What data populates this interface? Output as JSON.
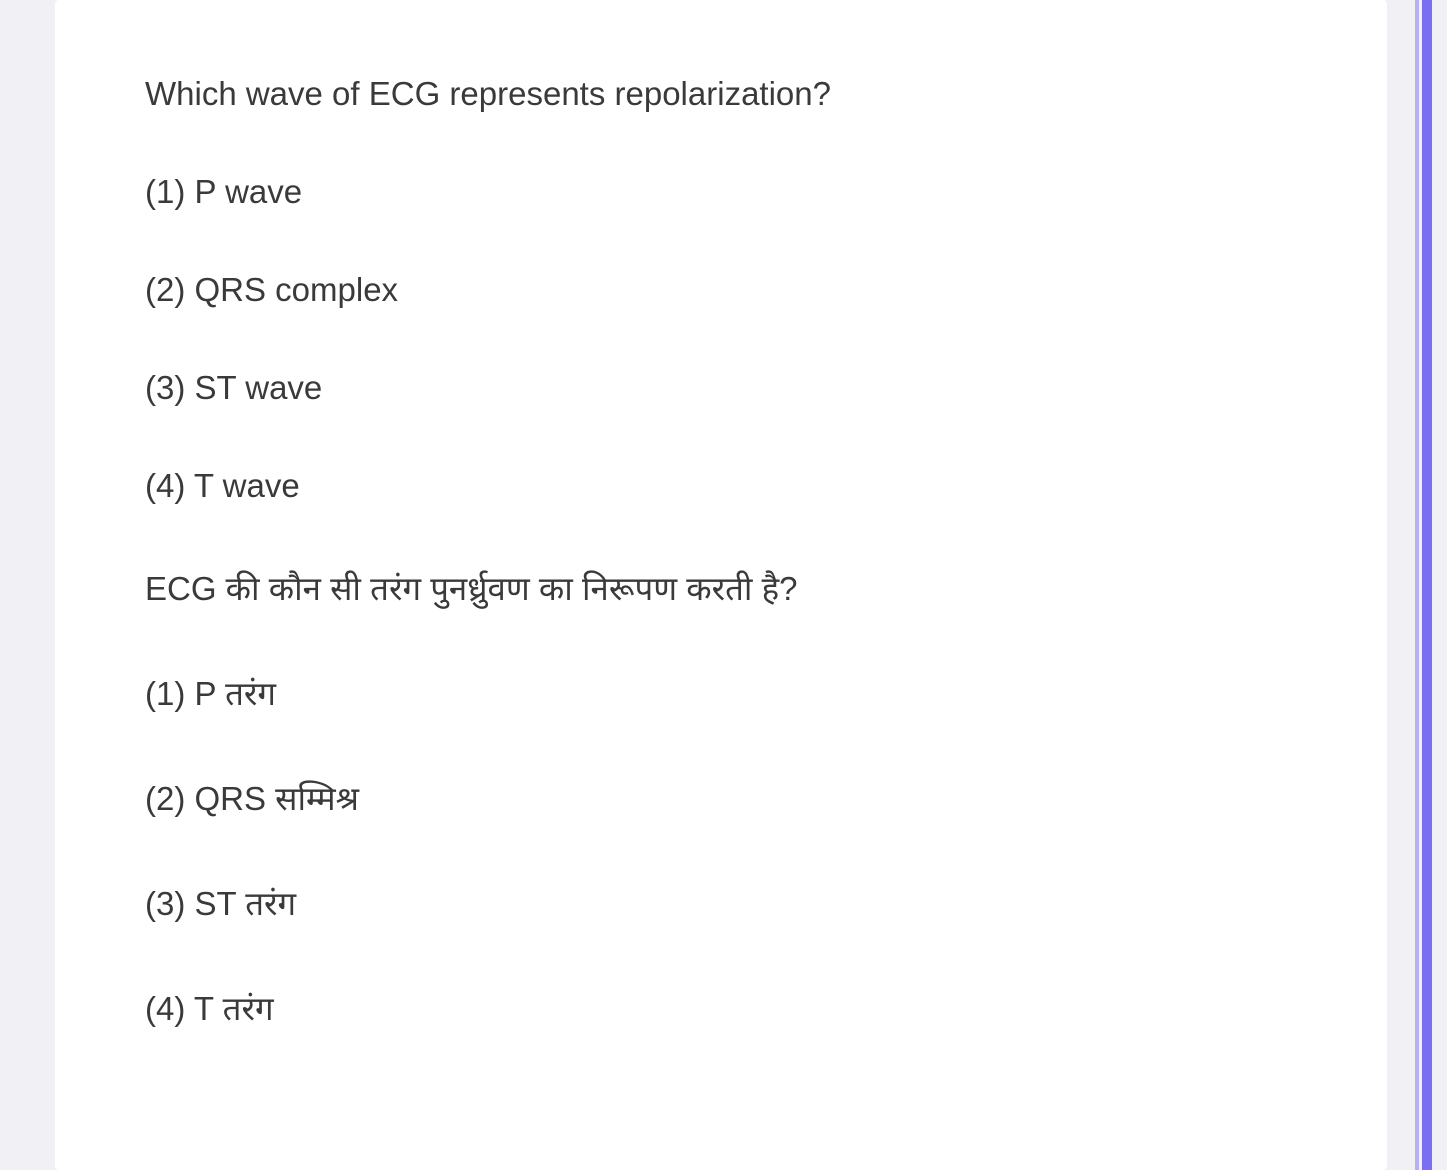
{
  "question": {
    "english": {
      "text": "Which wave of ECG represents repolarization?",
      "options": [
        "(1) P wave",
        "(2) QRS complex",
        "(3) ST wave",
        "(4) T wave"
      ]
    },
    "hindi": {
      "text": "ECG की कौन सी तरंग पुनर्ध्रुवण का निरूपण करती है?",
      "options": [
        "(1) P तरंग",
        "(2) QRS सम्मिश्र",
        "(3) ST तरंग",
        "(4) T तरंग"
      ]
    }
  },
  "styling": {
    "background_color": "#f0f0f5",
    "card_background": "#ffffff",
    "text_color": "#3a3a3a",
    "accent_color": "#7a6ff0",
    "accent_color_light": "#b8b0f5",
    "font_size": 33,
    "line_spacing": 60
  }
}
